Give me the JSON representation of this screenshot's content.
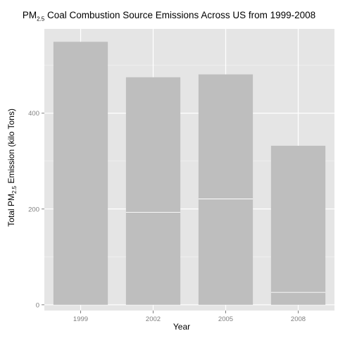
{
  "chart_data": {
    "type": "bar",
    "title_prefix": "PM",
    "title_subscript": "2.5",
    "title_suffix": " Coal Combustion Source Emissions Across US from 1999-2008",
    "xlabel": "Year",
    "ylabel_prefix": "Total PM",
    "ylabel_subscript": "2.5",
    "ylabel_suffix": " Emission (kilo Tons)",
    "categories": [
      "1999",
      "2002",
      "2005",
      "2008"
    ],
    "values": [
      549,
      475,
      481,
      332
    ],
    "segment_boundaries": [
      [],
      [
        193
      ],
      [
        221
      ],
      [
        26
      ]
    ],
    "ylim": [
      -12,
      576
    ],
    "yticks": [
      0,
      200,
      400
    ],
    "grid": true,
    "colors": {
      "panel": "#e5e5e5",
      "grid_major": "#ffffff",
      "grid_minor": "#f2f2f2",
      "bar": "#bebebe",
      "tick_text": "#7f7f7f"
    }
  }
}
